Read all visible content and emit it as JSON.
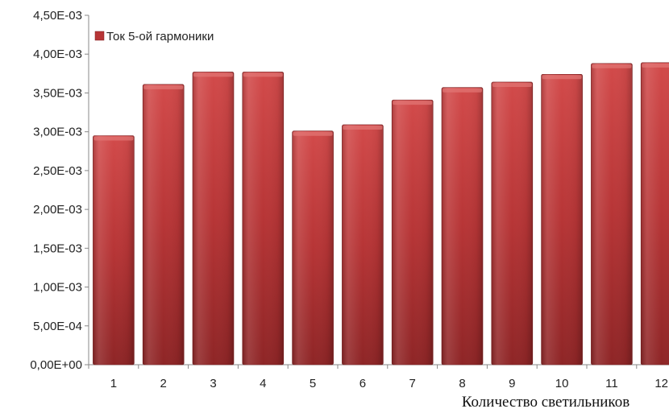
{
  "chart_data": {
    "type": "bar",
    "title": "",
    "xlabel": "Количество светильников",
    "ylabel": "",
    "categories": [
      "1",
      "2",
      "3",
      "4",
      "5",
      "6",
      "7",
      "8",
      "9",
      "10",
      "11",
      "12"
    ],
    "series": [
      {
        "name": "Ток 5-ой гармоники",
        "values": [
          0.00295,
          0.00361,
          0.00377,
          0.00377,
          0.00301,
          0.00309,
          0.00341,
          0.00357,
          0.00364,
          0.00374,
          0.00388,
          0.00389
        ]
      }
    ],
    "ylim": [
      0,
      0.0045
    ],
    "yticks": [
      0,
      0.0005,
      0.001,
      0.0015,
      0.002,
      0.0025,
      0.003,
      0.0035,
      0.004,
      0.0045
    ],
    "ytick_labels": [
      "0,00E+00",
      "5,00E-04",
      "1,00E-03",
      "1,50E-03",
      "2,00E-03",
      "2,50E-03",
      "3,00E-03",
      "3,50E-03",
      "4,00E-03",
      "4,50E-03"
    ],
    "grid": false,
    "legend_position": "top-left",
    "colors": {
      "bar": "#c0393b",
      "bar_dark": "#7a1f20",
      "bar_light": "#d9605f",
      "axis": "#888888"
    }
  }
}
